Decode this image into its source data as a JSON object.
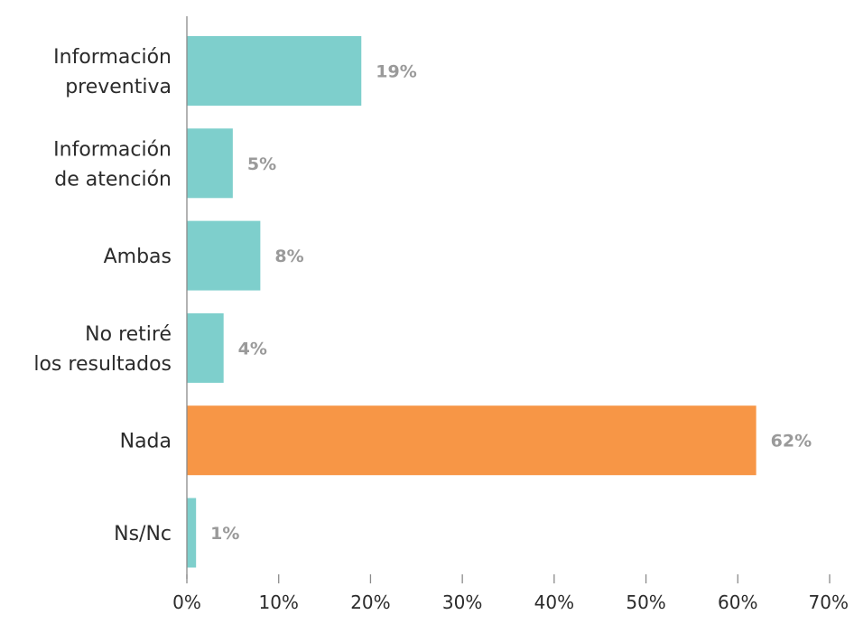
{
  "chart_data": {
    "type": "bar",
    "orientation": "horizontal",
    "categories": [
      [
        "Información",
        "preventiva"
      ],
      [
        "Información",
        "de atención"
      ],
      [
        "Ambas"
      ],
      [
        "No retiré",
        "los resultados"
      ],
      [
        "Nada"
      ],
      [
        "Ns/Nc"
      ]
    ],
    "values": [
      19,
      5,
      8,
      4,
      62,
      1
    ],
    "value_labels": [
      "19%",
      "5%",
      "8%",
      "4%",
      "62%",
      "1%"
    ],
    "colors": [
      "#7ecfcc",
      "#7ecfcc",
      "#7ecfcc",
      "#7ecfcc",
      "#f79646",
      "#7ecfcc"
    ],
    "xlim": [
      0,
      70
    ],
    "x_ticks": [
      0,
      10,
      20,
      30,
      40,
      50,
      60,
      70
    ],
    "x_tick_labels": [
      "0%",
      "10%",
      "20%",
      "30%",
      "40%",
      "50%",
      "60%",
      "70%"
    ],
    "grid": false,
    "legend": "none",
    "title": "",
    "xlabel": "",
    "ylabel": ""
  }
}
